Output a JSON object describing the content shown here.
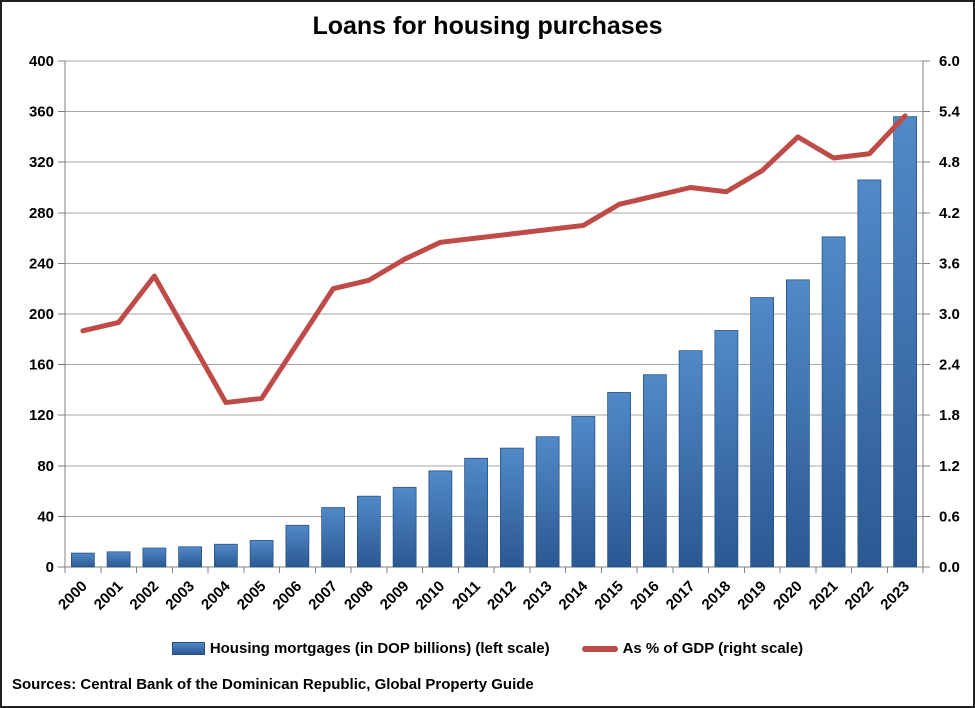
{
  "title": "Loans for housing purchases",
  "source_note": "Sources: Central Bank of the Dominican Republic, Global Property Guide",
  "legend": {
    "bars_label": "Housing mortgages (in DOP billions) (left scale)",
    "line_label": "As % of GDP (right scale)"
  },
  "colors": {
    "bar_gradient_top": "#5189c9",
    "bar_gradient_bottom": "#2b5892",
    "bar_border": "#24507f",
    "line": "#be4b48",
    "gridline": "#a6a6a6",
    "axis": "#808080",
    "text": "#000000",
    "background": "#ffffff"
  },
  "chart_data": {
    "type": "bar",
    "subtype": "combo-bar-line-dual-axis",
    "title": "Loans for housing purchases",
    "categories": [
      "2000",
      "2001",
      "2002",
      "2003",
      "2004",
      "2005",
      "2006",
      "2007",
      "2008",
      "2009",
      "2010",
      "2011",
      "2012",
      "2013",
      "2014",
      "2015",
      "2016",
      "2017",
      "2018",
      "2019",
      "2020",
      "2021",
      "2022",
      "2023"
    ],
    "series": [
      {
        "name": "Housing mortgages (in DOP billions) (left scale)",
        "type": "bar",
        "axis": "left",
        "values": [
          11,
          12,
          15,
          16,
          18,
          21,
          33,
          47,
          56,
          63,
          76,
          86,
          94,
          103,
          119,
          138,
          152,
          171,
          187,
          213,
          227,
          261,
          306,
          356
        ]
      },
      {
        "name": "As % of GDP (right scale)",
        "type": "line",
        "axis": "right",
        "values": [
          2.8,
          2.9,
          3.45,
          2.7,
          1.95,
          2.0,
          2.65,
          3.3,
          3.4,
          3.65,
          3.85,
          3.9,
          3.95,
          4.0,
          4.05,
          4.3,
          4.4,
          4.5,
          4.45,
          4.7,
          5.1,
          4.85,
          4.9,
          5.35
        ]
      }
    ],
    "left_axis": {
      "min": 0,
      "max": 400,
      "step": 40,
      "tick_labels": [
        "400",
        "360",
        "320",
        "280",
        "240",
        "200",
        "160",
        "120",
        "80",
        "40",
        "0"
      ]
    },
    "right_axis": {
      "min": 0,
      "max": 6.0,
      "step": 0.6,
      "tick_labels": [
        "6.0",
        "5.4",
        "4.8",
        "4.2",
        "3.6",
        "3.0",
        "2.4",
        "1.8",
        "1.2",
        "0.6",
        "0.0"
      ]
    },
    "xlabel": "",
    "ylabel_left": "",
    "ylabel_right": "",
    "grid": true,
    "legend_position": "bottom",
    "x_tick_rotation_deg": -45
  }
}
